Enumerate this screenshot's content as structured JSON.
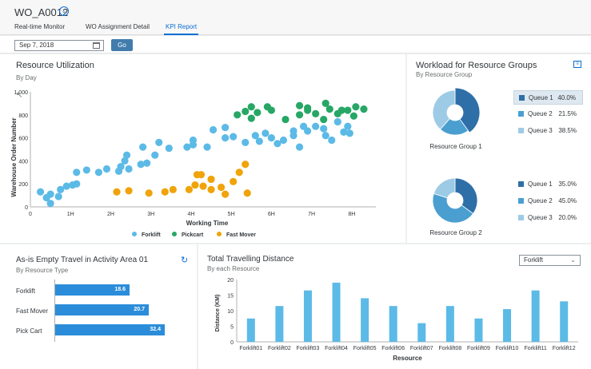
{
  "header": {
    "title": "WO_A0012",
    "tabs": [
      {
        "label": "Real-time Monitor"
      },
      {
        "label": "WO Assignment Detail"
      },
      {
        "label": "KPI Report"
      }
    ]
  },
  "toolbar": {
    "date_value": "Sep 7, 2018",
    "go_label": "Go"
  },
  "resource_utilization": {
    "title": "Resource Utilization",
    "subtitle": "By Day",
    "legend": [
      "Forklift",
      "Pickcart",
      "Fast Mover"
    ]
  },
  "workload": {
    "title": "Workload for Resource Groups",
    "subtitle": "By Resource Group",
    "groups": [
      {
        "name": "Resource Group 1",
        "queues": [
          {
            "label": "Queue 1",
            "value": "40.0%"
          },
          {
            "label": "Queue 2",
            "value": "21.5%"
          },
          {
            "label": "Queue 3",
            "value": "38.5%"
          }
        ]
      },
      {
        "name": "Resource Group 2",
        "queues": [
          {
            "label": "Queue 1",
            "value": "35.0%"
          },
          {
            "label": "Queue 2",
            "value": "45.0%"
          },
          {
            "label": "Queue 3",
            "value": "20.0%"
          }
        ]
      }
    ]
  },
  "empty_travel": {
    "title": "As-is Empty Travel in Activity Area 01",
    "subtitle": "By Resource Type",
    "bars": [
      {
        "label": "Forklift",
        "value": "18.6"
      },
      {
        "label": "Fast Mover",
        "value": "20.7"
      },
      {
        "label": "Pick Cart",
        "value": "32.4"
      }
    ]
  },
  "travel_distance": {
    "title": "Total Travelling Distance",
    "subtitle": "By each Resource",
    "selected_resource": "Forklift"
  },
  "colors": {
    "forklift": "#5cbae6",
    "pickcart": "#27a765",
    "fast_mover": "#f0a30a",
    "accent": "#0a6ed1"
  },
  "chart_data": [
    {
      "type": "scatter",
      "title": "Resource Utilization",
      "xlabel": "Working Time",
      "ylabel": "Warehouse Order Number",
      "x_ticks": [
        "0",
        "1H",
        "2H",
        "3H",
        "4H",
        "5H",
        "6H",
        "7H",
        "8H"
      ],
      "y_ticks": [
        "0",
        "200",
        "400",
        "600",
        "800",
        "1,000"
      ],
      "xlim": [
        0,
        8.6
      ],
      "ylim": [
        0,
        1000
      ],
      "series": [
        {
          "name": "Forklift",
          "points": [
            [
              0.25,
              130
            ],
            [
              0.4,
              80
            ],
            [
              0.5,
              30
            ],
            [
              0.5,
              110
            ],
            [
              0.7,
              90
            ],
            [
              0.75,
              150
            ],
            [
              0.9,
              180
            ],
            [
              1.05,
              190
            ],
            [
              1.15,
              200
            ],
            [
              1.15,
              300
            ],
            [
              1.4,
              320
            ],
            [
              1.7,
              300
            ],
            [
              1.9,
              330
            ],
            [
              2.2,
              310
            ],
            [
              2.25,
              350
            ],
            [
              2.35,
              400
            ],
            [
              2.4,
              450
            ],
            [
              2.45,
              330
            ],
            [
              2.75,
              370
            ],
            [
              2.8,
              520
            ],
            [
              2.9,
              380
            ],
            [
              3.1,
              450
            ],
            [
              3.2,
              560
            ],
            [
              3.45,
              510
            ],
            [
              3.9,
              520
            ],
            [
              4.05,
              540
            ],
            [
              4.05,
              580
            ],
            [
              4.4,
              520
            ],
            [
              4.55,
              670
            ],
            [
              4.85,
              690
            ],
            [
              4.85,
              600
            ],
            [
              5.05,
              610
            ],
            [
              5.35,
              560
            ],
            [
              5.6,
              620
            ],
            [
              5.7,
              570
            ],
            [
              5.85,
              640
            ],
            [
              6.0,
              600
            ],
            [
              6.15,
              550
            ],
            [
              6.3,
              580
            ],
            [
              6.55,
              660
            ],
            [
              6.55,
              620
            ],
            [
              6.7,
              520
            ],
            [
              6.8,
              700
            ],
            [
              6.9,
              660
            ],
            [
              7.1,
              700
            ],
            [
              7.3,
              680
            ],
            [
              7.35,
              620
            ],
            [
              7.5,
              580
            ],
            [
              7.65,
              740
            ],
            [
              7.8,
              650
            ],
            [
              7.9,
              700
            ],
            [
              7.95,
              640
            ]
          ]
        },
        {
          "name": "Pickcart",
          "points": [
            [
              5.15,
              800
            ],
            [
              5.35,
              830
            ],
            [
              5.5,
              870
            ],
            [
              5.5,
              770
            ],
            [
              5.65,
              820
            ],
            [
              5.9,
              870
            ],
            [
              6.0,
              840
            ],
            [
              6.35,
              760
            ],
            [
              6.7,
              880
            ],
            [
              6.7,
              800
            ],
            [
              6.9,
              860
            ],
            [
              6.9,
              840
            ],
            [
              7.1,
              810
            ],
            [
              7.3,
              760
            ],
            [
              7.35,
              900
            ],
            [
              7.45,
              850
            ],
            [
              7.65,
              810
            ],
            [
              7.75,
              840
            ],
            [
              7.9,
              840
            ],
            [
              8.05,
              790
            ],
            [
              8.1,
              870
            ],
            [
              8.3,
              850
            ]
          ]
        },
        {
          "name": "Fast Mover",
          "points": [
            [
              2.15,
              130
            ],
            [
              2.45,
              140
            ],
            [
              2.95,
              120
            ],
            [
              3.35,
              130
            ],
            [
              3.55,
              150
            ],
            [
              3.95,
              150
            ],
            [
              4.1,
              190
            ],
            [
              4.15,
              280
            ],
            [
              4.25,
              280
            ],
            [
              4.3,
              180
            ],
            [
              4.5,
              150
            ],
            [
              4.5,
              240
            ],
            [
              4.75,
              170
            ],
            [
              4.85,
              110
            ],
            [
              5.05,
              220
            ],
            [
              5.2,
              300
            ],
            [
              5.35,
              370
            ],
            [
              5.4,
              120
            ]
          ]
        }
      ]
    },
    {
      "type": "pie",
      "title": "Resource Group 1",
      "slices": [
        {
          "label": "Queue 1",
          "value": 40.0
        },
        {
          "label": "Queue 2",
          "value": 21.5
        },
        {
          "label": "Queue 3",
          "value": 38.5
        }
      ]
    },
    {
      "type": "pie",
      "title": "Resource Group 2",
      "slices": [
        {
          "label": "Queue 1",
          "value": 35.0
        },
        {
          "label": "Queue 2",
          "value": 45.0
        },
        {
          "label": "Queue 3",
          "value": 20.0
        }
      ]
    },
    {
      "type": "bar",
      "title": "As-is Empty Travel in Activity Area 01",
      "categories": [
        "Forklift",
        "Fast Mover",
        "Pick Cart"
      ],
      "values": [
        18.6,
        20.7,
        32.4
      ]
    },
    {
      "type": "bar",
      "title": "Total Travelling Distance",
      "xlabel": "Resource",
      "ylabel": "Distance (KM)",
      "categories": [
        "Forklift01",
        "Forklift02",
        "Forklift03",
        "Forklift04",
        "Forklift05",
        "Forklift06",
        "Forklift07",
        "Forklift08",
        "Forklift09",
        "Forklift10",
        "Forklift11",
        "Forklift12"
      ],
      "values": [
        7.5,
        11.5,
        16.5,
        19,
        14,
        11.5,
        6,
        11.5,
        7.5,
        10.5,
        16.5,
        13
      ],
      "y_ticks": [
        "0",
        "5",
        "10",
        "15",
        "20"
      ],
      "ylim": [
        0,
        20
      ]
    }
  ]
}
